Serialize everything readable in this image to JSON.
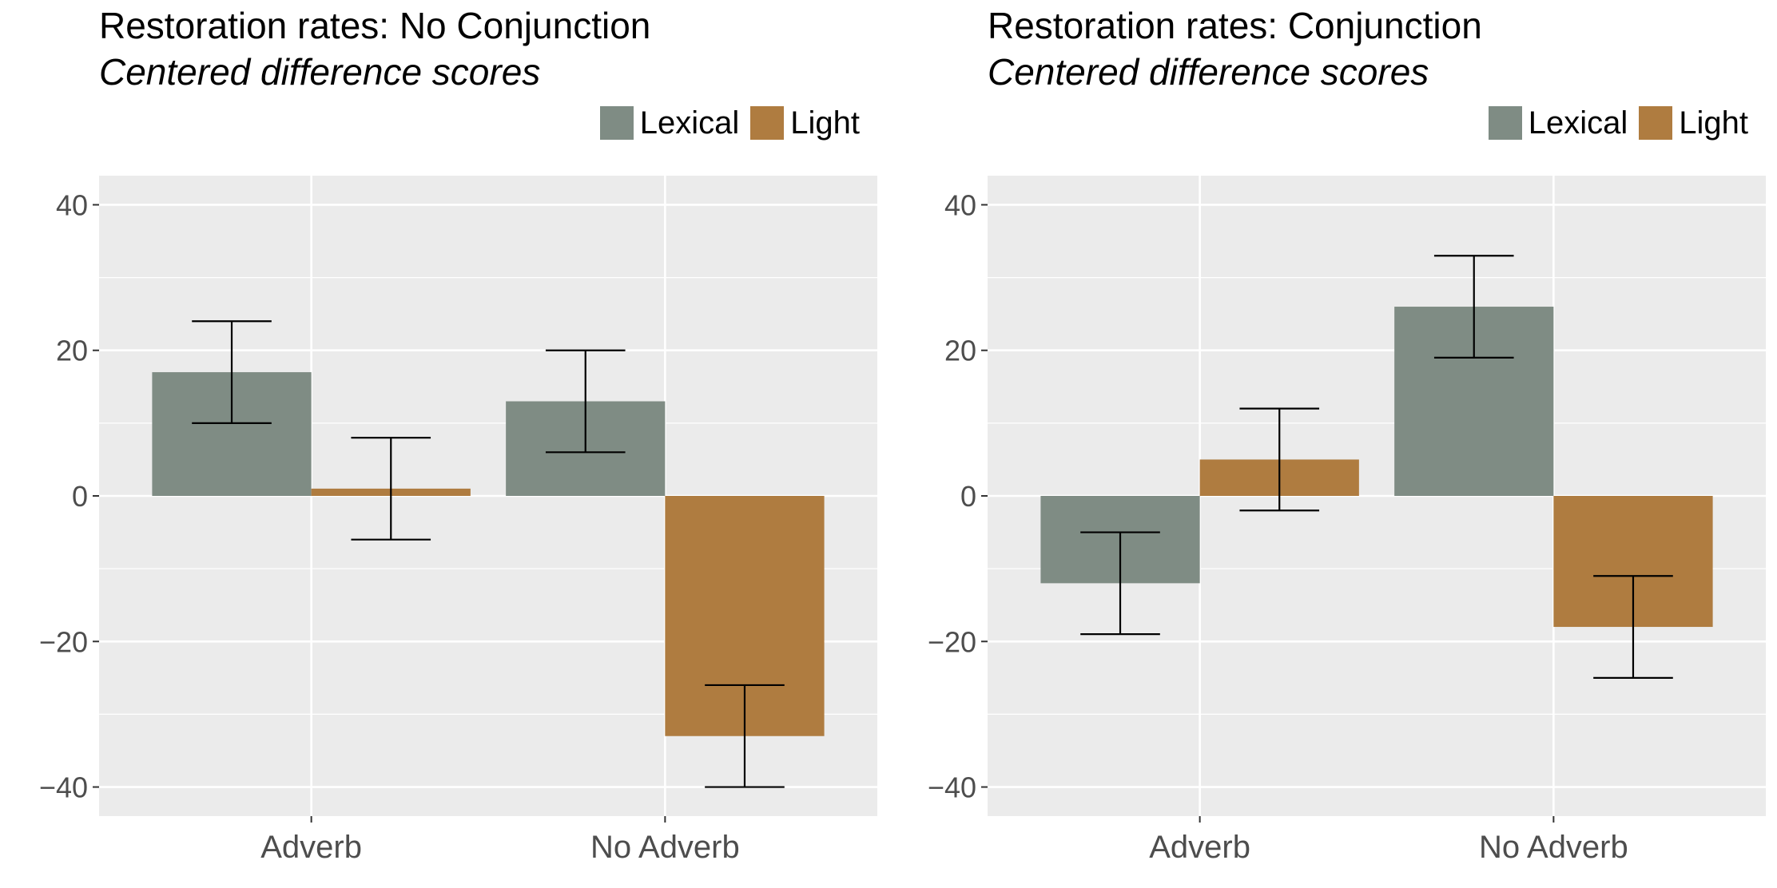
{
  "colors": {
    "lexical": "#7f8c84",
    "light": "#af7c40",
    "panel_bg": "#ebebeb",
    "grid": "#ffffff"
  },
  "chart_data": [
    {
      "type": "bar",
      "title": "Restoration rates: No Conjunction",
      "subtitle": "Centered difference scores",
      "categories": [
        "Adverb",
        "No Adverb"
      ],
      "series": [
        {
          "name": "Lexical",
          "values": [
            17,
            13
          ],
          "error_low": [
            10,
            6
          ],
          "error_high": [
            24,
            20
          ]
        },
        {
          "name": "Light",
          "values": [
            1,
            -33
          ],
          "error_low": [
            -6,
            -40
          ],
          "error_high": [
            8,
            -26
          ]
        }
      ],
      "ylim": [
        -44,
        44
      ],
      "yticks": [
        -40,
        -20,
        0,
        20,
        40
      ],
      "ytick_labels": [
        "−40",
        "−20",
        "0",
        "20",
        "40"
      ],
      "grid": true,
      "legend_position": "top-right"
    },
    {
      "type": "bar",
      "title": "Restoration rates: Conjunction",
      "subtitle": "Centered difference scores",
      "categories": [
        "Adverb",
        "No Adverb"
      ],
      "series": [
        {
          "name": "Lexical",
          "values": [
            -12,
            26
          ],
          "error_low": [
            -19,
            19
          ],
          "error_high": [
            -5,
            33
          ]
        },
        {
          "name": "Light",
          "values": [
            5,
            -18
          ],
          "error_low": [
            -2,
            -25
          ],
          "error_high": [
            12,
            -11
          ]
        }
      ],
      "ylim": [
        -44,
        44
      ],
      "yticks": [
        -40,
        -20,
        0,
        20,
        40
      ],
      "ytick_labels": [
        "−40",
        "−20",
        "0",
        "20",
        "40"
      ],
      "grid": true,
      "legend_position": "top-right"
    }
  ]
}
